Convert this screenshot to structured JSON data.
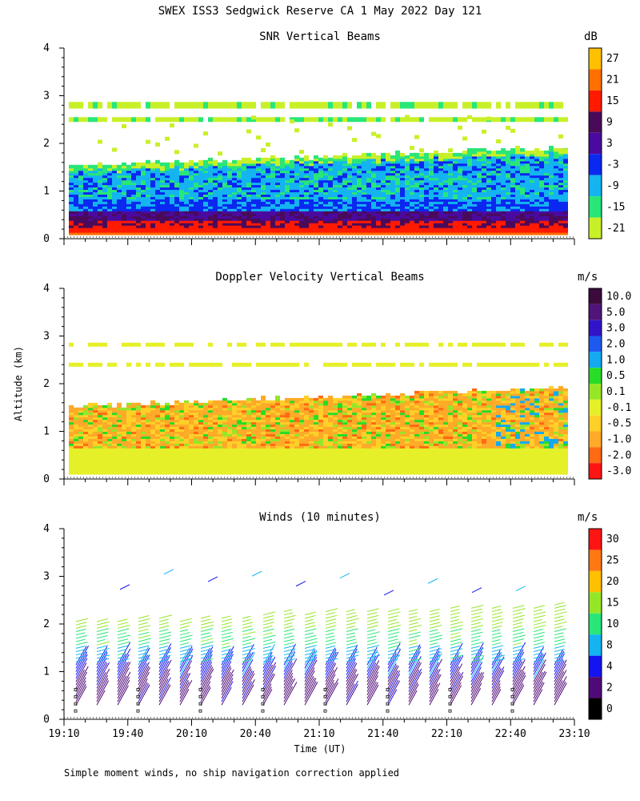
{
  "main_title": "SWEX ISS3 Sedgwick Reserve CA   1 May 2022 Day 121",
  "footer_note": "Simple moment winds, no ship navigation correction applied",
  "xlabel": "Time (UT)",
  "ylabel": "Altitude (km)",
  "chart_data": [
    {
      "type": "heatmap",
      "title": "SNR Vertical Beams",
      "unit": "dB",
      "y_ticks": [
        "0",
        "1",
        "2",
        "3",
        "4"
      ],
      "ylim": [
        0,
        4
      ],
      "xlim": [
        "19:10",
        "23:10"
      ],
      "colorbar": {
        "labels": [
          "27",
          "21",
          "15",
          "9",
          "3",
          "-3",
          "-9",
          "-15",
          "-21"
        ],
        "colors": [
          "#ffc000",
          "#ff7000",
          "#ff1a00",
          "#4a0a5a",
          "#4a0aa0",
          "#0a28f0",
          "#14b4f0",
          "#28e678",
          "#c8f028"
        ]
      },
      "layers": [
        {
          "name": "band-low-top",
          "ymin": 1.0,
          "ymax": 1.6
        },
        {
          "name": "band-3",
          "ymin": 2.75,
          "ymax": 2.85
        }
      ]
    },
    {
      "type": "heatmap",
      "title": "Doppler Velocity Vertical Beams",
      "unit": "m/s",
      "y_ticks": [
        "0",
        "1",
        "2",
        "3",
        "4"
      ],
      "ylim": [
        0,
        4
      ],
      "xlim": [
        "19:10",
        "23:10"
      ],
      "colorbar": {
        "labels": [
          "10.0",
          "5.0",
          "3.0",
          "2.0",
          "1.0",
          "0.5",
          "0.1",
          "-0.1",
          "-0.5",
          "-1.0",
          "-2.0",
          "-3.0"
        ],
        "colors": [
          "#3c0a3c",
          "#50147a",
          "#3214c8",
          "#1e5af0",
          "#14aaf0",
          "#28dc28",
          "#96e628",
          "#e6f028",
          "#ffd028",
          "#ffaa28",
          "#ff6a14",
          "#ff1414"
        ]
      }
    },
    {
      "type": "scatter",
      "title": "Winds (10 minutes)",
      "unit": "m/s",
      "y_ticks": [
        "0",
        "1",
        "2",
        "3",
        "4"
      ],
      "ylim": [
        0,
        4
      ],
      "x_ticks": [
        "19:10",
        "19:40",
        "20:10",
        "20:40",
        "21:10",
        "21:40",
        "22:10",
        "22:40",
        "23:10"
      ],
      "colorbar": {
        "labels": [
          "30",
          "25",
          "20",
          "15",
          "10",
          "8",
          "4",
          "2",
          "0"
        ],
        "colors": [
          "#ff1414",
          "#ff7814",
          "#ffc000",
          "#96e628",
          "#28e678",
          "#14b4f0",
          "#1414f0",
          "#500a78",
          "#000000"
        ]
      }
    }
  ]
}
